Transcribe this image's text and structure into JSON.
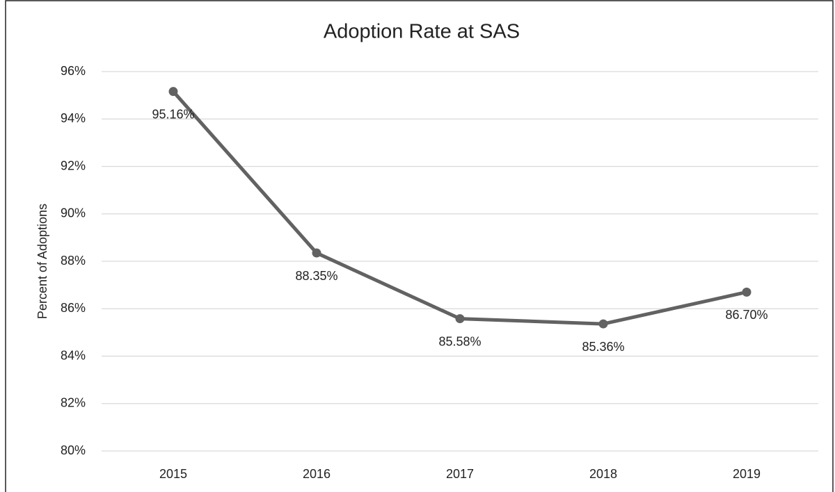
{
  "chart_data": {
    "type": "line",
    "title": "Adoption Rate at SAS",
    "y_label": "Percent of Adoptions",
    "categories": [
      "2015",
      "2016",
      "2017",
      "2018",
      "2019"
    ],
    "series": [
      {
        "name": "Adoption Rate",
        "color": "#626262",
        "values": [
          95.16,
          88.35,
          85.58,
          85.36,
          86.7
        ],
        "value_labels": [
          "95.16%",
          "88.35%",
          "85.58%",
          "85.36%",
          "86.70%"
        ]
      }
    ],
    "ylim": [
      80,
      96
    ],
    "yticks": [
      {
        "value": 80,
        "label": "80%"
      },
      {
        "value": 82,
        "label": "82%"
      },
      {
        "value": 84,
        "label": "84%"
      },
      {
        "value": 86,
        "label": "86%"
      },
      {
        "value": 88,
        "label": "88%"
      },
      {
        "value": 90,
        "label": "90%"
      },
      {
        "value": 92,
        "label": "92%"
      },
      {
        "value": 94,
        "label": "94%"
      },
      {
        "value": 96,
        "label": "96%"
      }
    ],
    "grid": true
  }
}
